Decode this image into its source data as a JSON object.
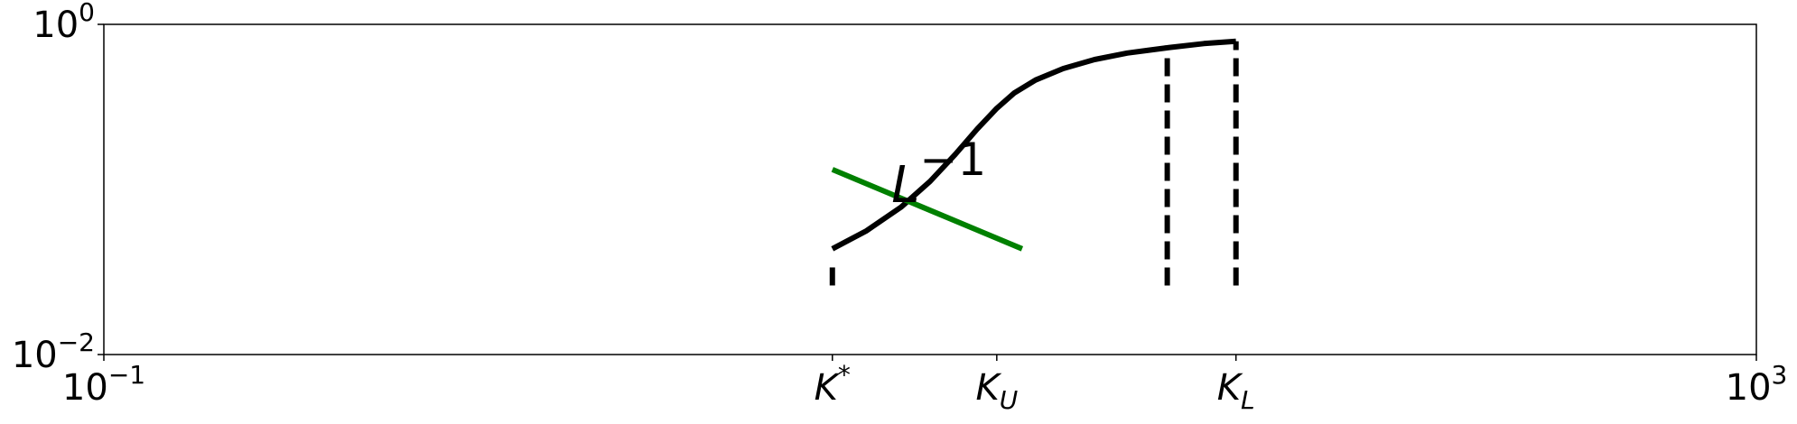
{
  "chart_data": {
    "type": "line",
    "x_scale": "log",
    "y_scale": "log",
    "xlim": [
      0.1,
      1000
    ],
    "ylim": [
      0.01,
      1
    ],
    "grid": false,
    "x_ticks": [
      {
        "value": 0.1,
        "base": "10",
        "exp": "−1"
      },
      {
        "value": 1000,
        "base": "10",
        "exp": "3"
      }
    ],
    "y_ticks": [
      {
        "value": 1,
        "base": "10",
        "exp": "0"
      },
      {
        "value": 0.01,
        "base": "10",
        "exp": "−2"
      }
    ],
    "x_marked_ticks": [
      {
        "value": 5.8,
        "main": "K",
        "sup": "*",
        "sub": ""
      },
      {
        "value": 14.5,
        "main": "K",
        "sup": "",
        "sub": "U"
      },
      {
        "value": 55,
        "main": "K",
        "sup": "",
        "sub": "L"
      }
    ],
    "annotation": {
      "main": "L",
      "sup": "−1",
      "x": 10.5,
      "y": 0.135
    },
    "series": [
      {
        "color": "#000000",
        "style": "solid",
        "points": [
          [
            5.8,
            0.0437
          ],
          [
            7.0,
            0.056
          ],
          [
            8.5,
            0.078
          ],
          [
            10.0,
            0.112
          ],
          [
            11.5,
            0.163
          ],
          [
            13.0,
            0.232
          ],
          [
            14.5,
            0.31
          ],
          [
            16.0,
            0.385
          ],
          [
            18.0,
            0.46
          ],
          [
            21.0,
            0.54
          ],
          [
            25.0,
            0.612
          ],
          [
            30.0,
            0.67
          ],
          [
            38.0,
            0.725
          ],
          [
            46.0,
            0.765
          ],
          [
            55.0,
            0.79
          ]
        ]
      },
      {
        "color": "#008000",
        "style": "solid",
        "points": [
          [
            5.8,
            0.132
          ],
          [
            16.7,
            0.0437
          ]
        ]
      }
    ],
    "vlines": [
      {
        "x": 5.8,
        "y_bottom": 0.0262,
        "y_top": 0.0365
      },
      {
        "x": 37.5,
        "y_bottom": 0.0262,
        "y_top": 0.745
      },
      {
        "x": 55.0,
        "y_bottom": 0.0262,
        "y_top": 0.79
      }
    ]
  }
}
